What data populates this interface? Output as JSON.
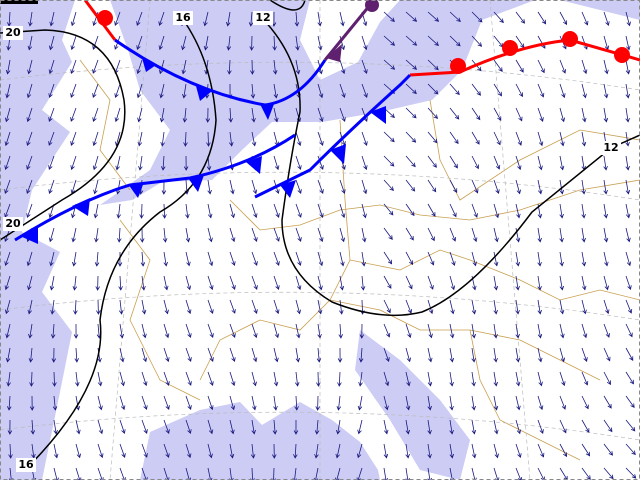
{
  "isobar_labels": [
    "20",
    "16",
    "12",
    "12",
    "20",
    "16"
  ]
}
